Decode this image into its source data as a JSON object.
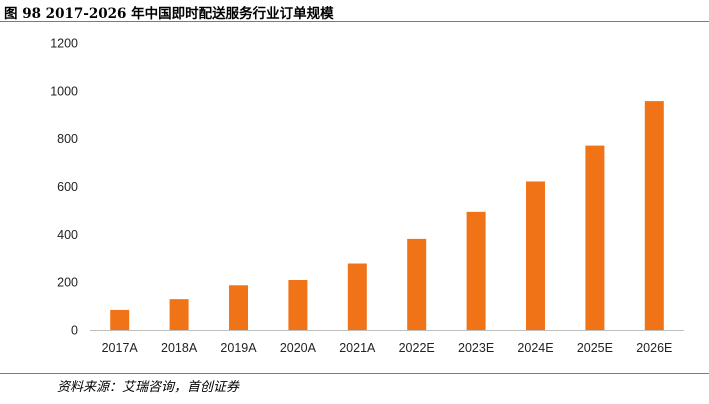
{
  "title": "图 98 2017-2026 年中国即时配送服务行业订单规模",
  "source": "资料来源：艾瑞咨询，首创证券",
  "colors": {
    "bar": "#f07318",
    "axis": "#bfbfbf",
    "text": "#222222"
  },
  "chart_data": {
    "type": "bar",
    "categories": [
      "2017A",
      "2018A",
      "2019A",
      "2020A",
      "2021A",
      "2022E",
      "2023E",
      "2024E",
      "2025E",
      "2026E"
    ],
    "values": [
      84,
      129,
      187,
      209,
      278,
      381,
      494,
      621,
      771,
      957
    ],
    "title": "",
    "xlabel": "",
    "ylabel": "",
    "ylim": [
      0,
      1200
    ],
    "yticks": [
      0,
      200,
      400,
      600,
      800,
      1000,
      1200
    ],
    "grid": false,
    "legend": "none"
  }
}
